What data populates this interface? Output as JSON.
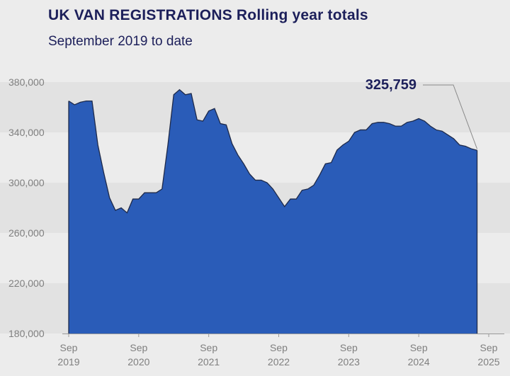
{
  "title": "UK VAN REGISTRATIONS Rolling year totals",
  "subtitle": "September 2019 to date",
  "colors": {
    "fill": "#2a5cb8",
    "stroke": "#1e2a4a",
    "text": "#1c1f5a",
    "axis": "#7f7f7f",
    "band": "#e2e2e2"
  },
  "chart_data": {
    "type": "area",
    "title": "UK VAN REGISTRATIONS Rolling year totals",
    "subtitle": "September 2019 to date",
    "ylim": [
      180000,
      380000
    ],
    "y_ticks": [
      "380,000",
      "340,000",
      "300,000",
      "260,000",
      "220,000",
      "180,000"
    ],
    "y_tick_values": [
      380000,
      340000,
      300000,
      260000,
      220000,
      180000
    ],
    "x_ticks": [
      {
        "index": 0,
        "month": "Sep",
        "year": "2019"
      },
      {
        "index": 12,
        "month": "Sep",
        "year": "2020"
      },
      {
        "index": 24,
        "month": "Sep",
        "year": "2021"
      },
      {
        "index": 36,
        "month": "Sep",
        "year": "2022"
      },
      {
        "index": 48,
        "month": "Sep",
        "year": "2023"
      },
      {
        "index": 60,
        "month": "Sep",
        "year": "2024"
      },
      {
        "index": 72,
        "month": "Sep",
        "year": "2025"
      }
    ],
    "series": [
      {
        "values": [
          365000,
          362000,
          364000,
          365000,
          365000,
          330000,
          308000,
          288000,
          278000,
          280000,
          276000,
          287000,
          287000,
          292000,
          292000,
          292000,
          295000,
          330000,
          370000,
          374000,
          370000,
          371000,
          350000,
          349000,
          357000,
          359000,
          347000,
          346000,
          331000,
          322000,
          315000,
          307000,
          302000,
          302000,
          300000,
          295000,
          288000,
          281000,
          287000,
          287000,
          294000,
          295000,
          298000,
          306000,
          315000,
          316000,
          326000,
          330000,
          333000,
          340000,
          342000,
          342000,
          347000,
          348000,
          348000,
          347000,
          345000,
          345000,
          348000,
          349000,
          351000,
          349000,
          345000,
          342000,
          341000,
          338000,
          335000,
          330000,
          329000,
          327000,
          325759
        ]
      }
    ],
    "annotation": {
      "label": "325,759",
      "value": 325759
    }
  }
}
